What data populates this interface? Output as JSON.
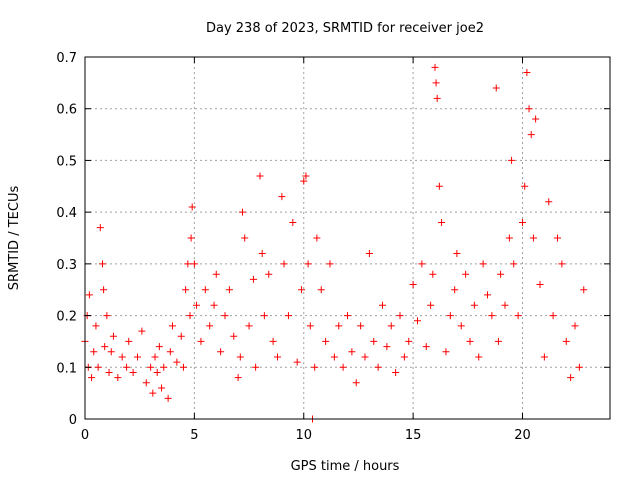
{
  "chart_data": {
    "type": "scatter",
    "title": "Day 238 of 2023, SRMTID for receiver joe2",
    "xlabel": "GPS time / hours",
    "ylabel": "SRMTID / TECUs",
    "xlim": [
      0,
      24
    ],
    "ylim": [
      0,
      0.7
    ],
    "xticks": [
      0,
      5,
      10,
      15,
      20
    ],
    "xtick_labels": [
      "0",
      "5",
      "10",
      "15",
      "20"
    ],
    "yticks": [
      0,
      0.1,
      0.2,
      0.3,
      0.4,
      0.5,
      0.6,
      0.7
    ],
    "ytick_labels": [
      "0",
      "0.1",
      "0.2",
      "0.3",
      "0.4",
      "0.5",
      "0.6",
      "0.7"
    ],
    "grid": true,
    "marker": "+",
    "series": [
      {
        "name": "SRMTID",
        "color": "#ff0000",
        "x": [
          0.0,
          0.1,
          0.15,
          0.2,
          0.3,
          0.4,
          0.5,
          0.6,
          0.7,
          0.8,
          0.85,
          0.9,
          1.0,
          1.1,
          1.2,
          1.3,
          1.5,
          1.7,
          1.9,
          2.0,
          2.2,
          2.4,
          2.6,
          2.8,
          3.0,
          3.1,
          3.2,
          3.3,
          3.4,
          3.5,
          3.6,
          3.8,
          3.9,
          4.0,
          4.2,
          4.4,
          4.5,
          4.6,
          4.7,
          4.8,
          4.85,
          4.9,
          5.0,
          5.1,
          5.3,
          5.5,
          5.7,
          5.9,
          6.0,
          6.2,
          6.4,
          6.6,
          6.8,
          7.0,
          7.1,
          7.2,
          7.3,
          7.5,
          7.7,
          7.8,
          8.0,
          8.1,
          8.2,
          8.4,
          8.6,
          8.8,
          9.0,
          9.1,
          9.3,
          9.5,
          9.7,
          9.9,
          10.0,
          10.1,
          10.2,
          10.3,
          10.4,
          10.5,
          10.6,
          10.8,
          11.0,
          11.2,
          11.4,
          11.6,
          11.8,
          12.0,
          12.2,
          12.4,
          12.6,
          12.8,
          13.0,
          13.2,
          13.4,
          13.6,
          13.8,
          14.0,
          14.2,
          14.4,
          14.6,
          14.8,
          15.0,
          15.2,
          15.4,
          15.6,
          15.8,
          15.9,
          16.0,
          16.05,
          16.1,
          16.2,
          16.3,
          16.5,
          16.7,
          16.9,
          17.0,
          17.2,
          17.4,
          17.6,
          17.8,
          18.0,
          18.2,
          18.4,
          18.6,
          18.8,
          18.9,
          19.0,
          19.2,
          19.4,
          19.5,
          19.6,
          19.8,
          20.0,
          20.1,
          20.2,
          20.3,
          20.4,
          20.5,
          20.6,
          20.8,
          21.0,
          21.2,
          21.4,
          21.6,
          21.8,
          22.0,
          22.2,
          22.4,
          22.6,
          22.8
        ],
        "y": [
          0.15,
          0.2,
          0.1,
          0.24,
          0.08,
          0.13,
          0.18,
          0.1,
          0.37,
          0.3,
          0.25,
          0.14,
          0.2,
          0.09,
          0.13,
          0.16,
          0.08,
          0.12,
          0.1,
          0.15,
          0.09,
          0.12,
          0.17,
          0.07,
          0.1,
          0.05,
          0.12,
          0.09,
          0.14,
          0.06,
          0.1,
          0.04,
          0.13,
          0.18,
          0.11,
          0.16,
          0.1,
          0.25,
          0.3,
          0.2,
          0.35,
          0.41,
          0.3,
          0.22,
          0.15,
          0.25,
          0.18,
          0.22,
          0.28,
          0.13,
          0.2,
          0.25,
          0.16,
          0.08,
          0.12,
          0.4,
          0.35,
          0.18,
          0.27,
          0.1,
          0.47,
          0.32,
          0.2,
          0.28,
          0.15,
          0.12,
          0.43,
          0.3,
          0.2,
          0.38,
          0.11,
          0.25,
          0.46,
          0.47,
          0.3,
          0.18,
          0.0,
          0.1,
          0.35,
          0.25,
          0.15,
          0.3,
          0.12,
          0.18,
          0.1,
          0.2,
          0.13,
          0.07,
          0.18,
          0.12,
          0.32,
          0.15,
          0.1,
          0.22,
          0.14,
          0.18,
          0.09,
          0.2,
          0.12,
          0.15,
          0.26,
          0.19,
          0.3,
          0.14,
          0.22,
          0.28,
          0.68,
          0.65,
          0.62,
          0.45,
          0.38,
          0.13,
          0.2,
          0.25,
          0.32,
          0.18,
          0.28,
          0.15,
          0.22,
          0.12,
          0.3,
          0.24,
          0.2,
          0.64,
          0.15,
          0.28,
          0.22,
          0.35,
          0.5,
          0.3,
          0.2,
          0.38,
          0.45,
          0.67,
          0.6,
          0.55,
          0.35,
          0.58,
          0.26,
          0.12,
          0.42,
          0.2,
          0.35,
          0.3,
          0.15,
          0.08,
          0.18,
          0.1,
          0.25
        ]
      }
    ]
  }
}
